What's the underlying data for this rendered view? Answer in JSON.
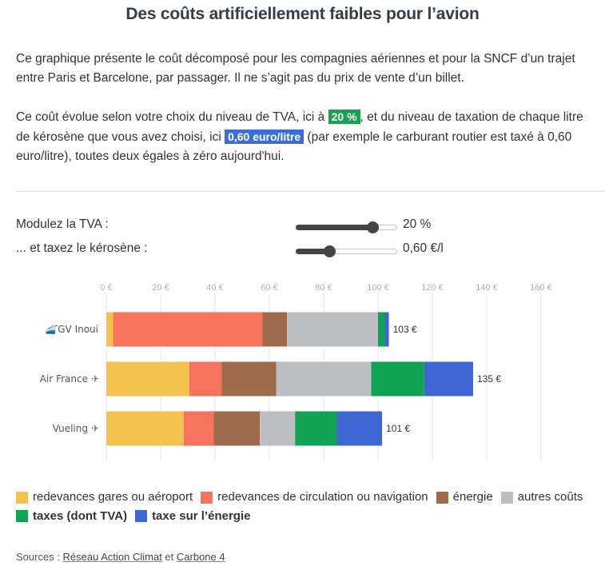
{
  "title": "Des coûts artificiellement faibles pour l’avion",
  "intro": "Ce graphique présente le coût décomposé pour les compagnies aériennes et pour la SNCF d’un trajet entre Paris et Barcelone, par passager. Il ne s’agit pas du prix de vente d’un billet.",
  "explanation": {
    "part1": "Ce coût évolue selon votre choix du niveau de TVA, ici à ",
    "tva_highlight": "20 %",
    "part2": ", et du niveau de taxation de chaque litre de kérosène que vous avez choisi, ici ",
    "kerosene_highlight": "0,60 euro/litre",
    "part3": " (par exemple le carburant routier est taxé à 0,60 euro/litre), toutes deux égales à zéro aujourd'hui."
  },
  "controls": {
    "tva": {
      "label": "Modulez la TVA :",
      "value_text": "20 %",
      "level": 0.79
    },
    "kerosene": {
      "label": "... et taxez le kérosène :",
      "value_text": "0,60 €/l",
      "level": 0.31
    }
  },
  "colors": {
    "redevances_gares": "#f3c24f",
    "redevances_circulation": "#f8735e",
    "energie": "#9e6b4d",
    "autres": "#bcbec1",
    "taxes": "#11a354",
    "taxe_energie": "#3f67d4"
  },
  "chart_data": {
    "type": "bar",
    "orientation": "horizontal",
    "stacked": true,
    "xlim": [
      0,
      160
    ],
    "x_ticks": [
      0,
      20,
      40,
      60,
      80,
      100,
      120,
      140,
      160
    ],
    "x_tick_labels": [
      "0 €",
      "20 €",
      "40 €",
      "60 €",
      "80 €",
      "100 €",
      "120 €",
      "140 €",
      "160 €"
    ],
    "categories": [
      {
        "label": "TGV Inoui",
        "icon": "train-icon",
        "total_label": "103 €"
      },
      {
        "label": "Air France",
        "icon": "airplane-icon",
        "total_label": "135 €"
      },
      {
        "label": "Vueling",
        "icon": "airplane-icon",
        "total_label": "101 €"
      }
    ],
    "series": [
      {
        "name": "redevances gares ou aéroport",
        "key": "redevances_gares",
        "values": [
          2.5,
          30.5,
          28.5
        ]
      },
      {
        "name": "redevances de circulation ou navigation",
        "key": "redevances_circulation",
        "values": [
          55,
          12,
          11
        ]
      },
      {
        "name": "énergie",
        "key": "energie",
        "values": [
          9,
          20,
          17
        ]
      },
      {
        "name": "autres coûts",
        "key": "autres",
        "values": [
          33.5,
          35,
          13
        ]
      },
      {
        "name": "taxes (dont TVA)",
        "key": "taxes",
        "values": [
          2.5,
          19.5,
          15.5
        ]
      },
      {
        "name": "taxe sur l’énergie",
        "key": "taxe_energie",
        "values": [
          1.5,
          18,
          16.5
        ]
      }
    ],
    "grid": true
  },
  "sources": {
    "prefix": "Sources : ",
    "link1": "Réseau Action Climat",
    "conj": " et ",
    "link2": "Carbone 4"
  }
}
